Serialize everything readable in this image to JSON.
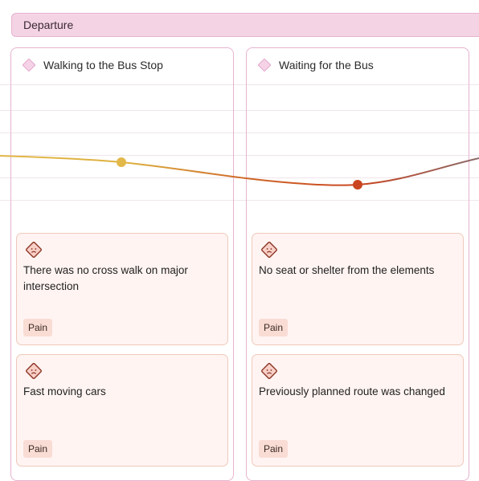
{
  "stage": {
    "label": "Departure",
    "color": "#f4d3e5"
  },
  "steps": [
    {
      "title": "Walking to the Bus Stop",
      "cards": [
        {
          "icon": "sad-face-icon",
          "text": "There was no cross walk on major intersection",
          "tag": "Pain"
        },
        {
          "icon": "sad-face-icon",
          "text": "Fast moving cars",
          "tag": "Pain"
        }
      ]
    },
    {
      "title": "Waiting for the Bus",
      "cards": [
        {
          "icon": "sad-face-icon",
          "text": "No seat or shelter from the elements",
          "tag": "Pain"
        },
        {
          "icon": "sad-face-icon",
          "text": "Previously planned route was changed",
          "tag": "Pain"
        }
      ]
    }
  ],
  "emotion_curve": {
    "colors": {
      "positive": "#e3b84a",
      "negative": "#c9441f",
      "neutral": "#8a6a6a"
    }
  }
}
